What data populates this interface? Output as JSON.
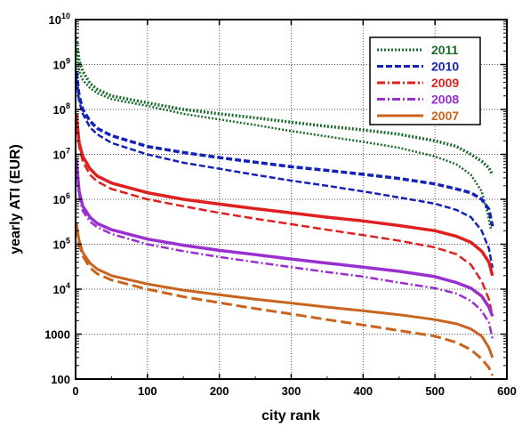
{
  "chart_data": {
    "type": "line",
    "title": "",
    "xlabel": "city  rank",
    "ylabel": "yearly  ATI  (EUR)",
    "xlim": [
      0,
      600
    ],
    "ylim": [
      100,
      10000000000
    ],
    "y_scale": "log",
    "grid": true,
    "legend_position": "top-right",
    "x_ticks": [
      {
        "value": 0,
        "label": "0"
      },
      {
        "value": 100,
        "label": "100"
      },
      {
        "value": 200,
        "label": "200"
      },
      {
        "value": 300,
        "label": "300"
      },
      {
        "value": 400,
        "label": "400"
      },
      {
        "value": 500,
        "label": "500"
      },
      {
        "value": 600,
        "label": "600"
      }
    ],
    "y_ticks": [
      {
        "value": 100,
        "base": "100",
        "exp": ""
      },
      {
        "value": 1000,
        "base": "1000",
        "exp": ""
      },
      {
        "value": 10000,
        "base": "10",
        "exp": "4"
      },
      {
        "value": 100000,
        "base": "10",
        "exp": "5"
      },
      {
        "value": 1000000,
        "base": "10",
        "exp": "6"
      },
      {
        "value": 10000000,
        "base": "10",
        "exp": "7"
      },
      {
        "value": 100000000,
        "base": "10",
        "exp": "8"
      },
      {
        "value": 1000000000,
        "base": "10",
        "exp": "9"
      },
      {
        "value": 10000000000,
        "base": "10",
        "exp": "10"
      }
    ],
    "series": [
      {
        "name": "2011",
        "color": "#1b6b2a",
        "points": [
          [
            1,
            4000000000
          ],
          [
            5,
            1200000000
          ],
          [
            10,
            700000000
          ],
          [
            20,
            380000000
          ],
          [
            30,
            280000000
          ],
          [
            50,
            200000000
          ],
          [
            100,
            140000000
          ],
          [
            150,
            100000000
          ],
          [
            200,
            80000000
          ],
          [
            250,
            65000000
          ],
          [
            300,
            52000000
          ],
          [
            350,
            42000000
          ],
          [
            400,
            35000000
          ],
          [
            450,
            28000000
          ],
          [
            500,
            20000000
          ],
          [
            530,
            15000000
          ],
          [
            550,
            10000000
          ],
          [
            565,
            7000000
          ],
          [
            575,
            5000000
          ],
          [
            580,
            3500000
          ]
        ]
      },
      {
        "name": "2011",
        "color": "#1b6b2a",
        "points": [
          [
            1,
            2000000000
          ],
          [
            5,
            700000000
          ],
          [
            10,
            450000000
          ],
          [
            20,
            300000000
          ],
          [
            30,
            230000000
          ],
          [
            50,
            170000000
          ],
          [
            100,
            120000000
          ],
          [
            150,
            80000000
          ],
          [
            200,
            60000000
          ],
          [
            250,
            45000000
          ],
          [
            300,
            33000000
          ],
          [
            350,
            25000000
          ],
          [
            400,
            19000000
          ],
          [
            450,
            14000000
          ],
          [
            500,
            9000000
          ],
          [
            530,
            6000000
          ],
          [
            550,
            3500000
          ],
          [
            565,
            1500000
          ],
          [
            573,
            500000
          ],
          [
            578,
            200000
          ]
        ]
      },
      {
        "name": "2010",
        "color": "#1422b8",
        "points": [
          [
            1,
            700000000
          ],
          [
            5,
            200000000
          ],
          [
            10,
            100000000
          ],
          [
            20,
            55000000
          ],
          [
            30,
            38000000
          ],
          [
            50,
            26000000
          ],
          [
            100,
            15000000
          ],
          [
            150,
            11000000
          ],
          [
            200,
            8500000
          ],
          [
            250,
            6700000
          ],
          [
            300,
            5300000
          ],
          [
            350,
            4400000
          ],
          [
            400,
            3600000
          ],
          [
            450,
            2900000
          ],
          [
            500,
            2200000
          ],
          [
            530,
            1700000
          ],
          [
            550,
            1400000
          ],
          [
            565,
            1000000
          ],
          [
            575,
            600000
          ],
          [
            580,
            250000
          ]
        ]
      },
      {
        "name": "2010",
        "color": "#1422b8",
        "points": [
          [
            1,
            500000000
          ],
          [
            5,
            150000000
          ],
          [
            10,
            80000000
          ],
          [
            20,
            40000000
          ],
          [
            30,
            28000000
          ],
          [
            50,
            18000000
          ],
          [
            100,
            10000000
          ],
          [
            150,
            6500000
          ],
          [
            200,
            4800000
          ],
          [
            250,
            3500000
          ],
          [
            300,
            2600000
          ],
          [
            350,
            2000000
          ],
          [
            400,
            1500000
          ],
          [
            450,
            1100000
          ],
          [
            500,
            800000
          ],
          [
            530,
            580000
          ],
          [
            550,
            400000
          ],
          [
            565,
            200000
          ],
          [
            575,
            80000
          ],
          [
            580,
            30000
          ]
        ]
      },
      {
        "name": "2009",
        "color": "#e02020",
        "points": [
          [
            1,
            80000000
          ],
          [
            5,
            18000000
          ],
          [
            10,
            9000000
          ],
          [
            20,
            4800000
          ],
          [
            30,
            3300000
          ],
          [
            50,
            2300000
          ],
          [
            100,
            1400000
          ],
          [
            150,
            1000000
          ],
          [
            200,
            780000
          ],
          [
            250,
            620000
          ],
          [
            300,
            500000
          ],
          [
            350,
            400000
          ],
          [
            400,
            330000
          ],
          [
            450,
            260000
          ],
          [
            500,
            200000
          ],
          [
            530,
            150000
          ],
          [
            550,
            110000
          ],
          [
            565,
            70000
          ],
          [
            575,
            40000
          ],
          [
            580,
            20000
          ]
        ]
      },
      {
        "name": "2009",
        "color": "#e02020",
        "points": [
          [
            1,
            60000000
          ],
          [
            5,
            15000000
          ],
          [
            10,
            7000000
          ],
          [
            20,
            3500000
          ],
          [
            30,
            2500000
          ],
          [
            50,
            1700000
          ],
          [
            100,
            1000000
          ],
          [
            150,
            700000
          ],
          [
            200,
            500000
          ],
          [
            250,
            370000
          ],
          [
            300,
            280000
          ],
          [
            350,
            210000
          ],
          [
            400,
            160000
          ],
          [
            450,
            120000
          ],
          [
            500,
            85000
          ],
          [
            530,
            60000
          ],
          [
            550,
            35000
          ],
          [
            565,
            15000
          ],
          [
            575,
            6000
          ],
          [
            580,
            2500
          ]
        ]
      },
      {
        "name": "2008",
        "color": "#9a2fd0",
        "points": [
          [
            1,
            8000000
          ],
          [
            5,
            1500000
          ],
          [
            10,
            700000
          ],
          [
            20,
            400000
          ],
          [
            30,
            290000
          ],
          [
            50,
            210000
          ],
          [
            100,
            130000
          ],
          [
            150,
            95000
          ],
          [
            200,
            73000
          ],
          [
            250,
            59000
          ],
          [
            300,
            47000
          ],
          [
            350,
            38000
          ],
          [
            400,
            31000
          ],
          [
            450,
            25000
          ],
          [
            500,
            19000
          ],
          [
            530,
            14000
          ],
          [
            550,
            10500
          ],
          [
            565,
            7000
          ],
          [
            575,
            4000
          ],
          [
            580,
            2500
          ]
        ]
      },
      {
        "name": "2008",
        "color": "#9a2fd0",
        "points": [
          [
            1,
            6000000
          ],
          [
            5,
            1200000
          ],
          [
            10,
            550000
          ],
          [
            20,
            320000
          ],
          [
            30,
            240000
          ],
          [
            50,
            170000
          ],
          [
            100,
            100000
          ],
          [
            150,
            70000
          ],
          [
            200,
            52000
          ],
          [
            250,
            40000
          ],
          [
            300,
            31000
          ],
          [
            350,
            24000
          ],
          [
            400,
            19000
          ],
          [
            450,
            14000
          ],
          [
            500,
            10500
          ],
          [
            530,
            8000
          ],
          [
            550,
            5500
          ],
          [
            565,
            3300
          ],
          [
            575,
            1800
          ],
          [
            580,
            800
          ]
        ]
      },
      {
        "name": "2007",
        "color": "#c8641e",
        "points": [
          [
            1,
            300000
          ],
          [
            5,
            120000
          ],
          [
            10,
            65000
          ],
          [
            20,
            38000
          ],
          [
            30,
            28000
          ],
          [
            50,
            20000
          ],
          [
            100,
            13000
          ],
          [
            150,
            9500
          ],
          [
            200,
            7500
          ],
          [
            250,
            6000
          ],
          [
            300,
            4900
          ],
          [
            350,
            4000
          ],
          [
            400,
            3300
          ],
          [
            450,
            2700
          ],
          [
            500,
            2100
          ],
          [
            530,
            1700
          ],
          [
            550,
            1300
          ],
          [
            565,
            900
          ],
          [
            575,
            500
          ],
          [
            580,
            300
          ]
        ]
      },
      {
        "name": "2007",
        "color": "#c8641e",
        "points": [
          [
            1,
            250000
          ],
          [
            5,
            100000
          ],
          [
            10,
            55000
          ],
          [
            20,
            30000
          ],
          [
            30,
            22000
          ],
          [
            50,
            16000
          ],
          [
            100,
            10000
          ],
          [
            150,
            6800
          ],
          [
            200,
            5000
          ],
          [
            250,
            3700
          ],
          [
            300,
            2800
          ],
          [
            350,
            2100
          ],
          [
            400,
            1600
          ],
          [
            450,
            1200
          ],
          [
            500,
            900
          ],
          [
            530,
            650
          ],
          [
            550,
            450
          ],
          [
            565,
            280
          ],
          [
            575,
            180
          ],
          [
            580,
            120
          ]
        ]
      }
    ],
    "legend": [
      {
        "label": "2011",
        "color": "#1b6b2a",
        "dash": "2,2"
      },
      {
        "label": "2010",
        "color": "#1422b8",
        "dash": "7,3"
      },
      {
        "label": "2009",
        "color": "#e02020",
        "dash": "9,3,2,3"
      },
      {
        "label": "2008",
        "color": "#9a2fd0",
        "dash": "9,3,2,3"
      },
      {
        "label": "2007",
        "color": "#c8641e",
        "dash": ""
      }
    ]
  }
}
